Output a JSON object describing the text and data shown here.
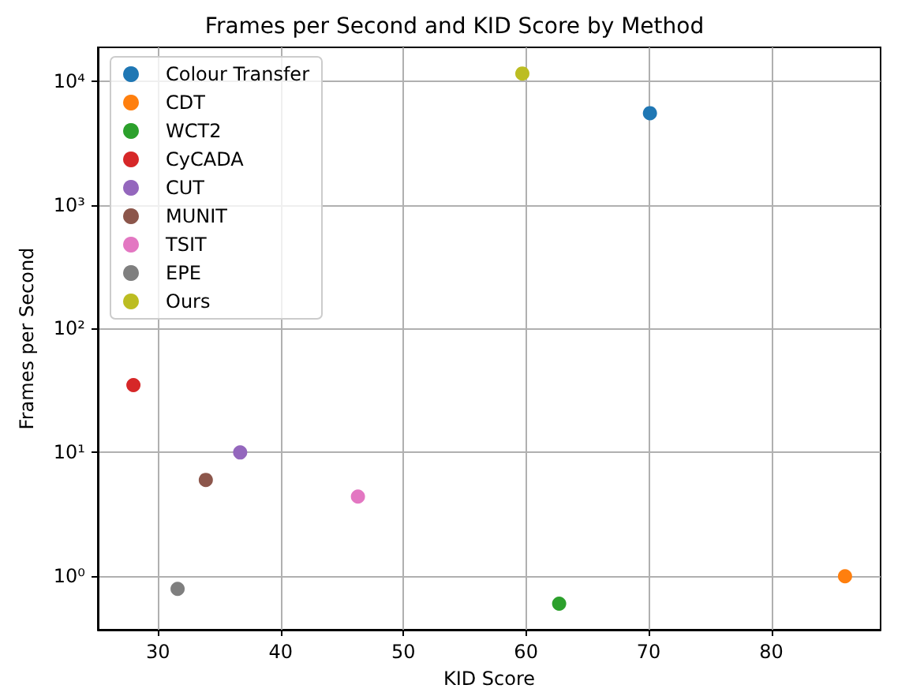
{
  "chart_data": {
    "type": "scatter",
    "title": "Frames per Second and KID Score by Method",
    "xlabel": "KID Score",
    "ylabel": "Frames per Second",
    "series": [
      {
        "name": "Colour Transfer",
        "color": "#1f77b4",
        "x": [
          70.1
        ],
        "values": [
          5500
        ]
      },
      {
        "name": "CDT",
        "color": "#ff7f0e",
        "x": [
          86.0
        ],
        "values": [
          1.0
        ]
      },
      {
        "name": "WCT2",
        "color": "#2ca02c",
        "x": [
          62.7
        ],
        "values": [
          0.6
        ]
      },
      {
        "name": "CyCADA",
        "color": "#d62728",
        "x": [
          28.0
        ],
        "values": [
          35
        ]
      },
      {
        "name": "CUT",
        "color": "#9467bd",
        "x": [
          36.7
        ],
        "values": [
          10
        ]
      },
      {
        "name": "MUNIT",
        "color": "#8c564b",
        "x": [
          33.9
        ],
        "values": [
          6.0
        ]
      },
      {
        "name": "TSIT",
        "color": "#e377c2",
        "x": [
          46.3
        ],
        "values": [
          4.4
        ]
      },
      {
        "name": "EPE",
        "color": "#7f7f7f",
        "x": [
          31.6
        ],
        "values": [
          0.79
        ]
      },
      {
        "name": "Ours",
        "color": "#bcbd22",
        "x": [
          59.7
        ],
        "values": [
          11500
        ]
      }
    ],
    "xlim": [
      25.1,
      88.9
    ],
    "xticks": [
      30,
      40,
      50,
      60,
      70,
      80
    ],
    "ylim": [
      0.37,
      18700
    ],
    "yticks": [
      {
        "value": 1,
        "label": "10⁰"
      },
      {
        "value": 10,
        "label": "10¹"
      },
      {
        "value": 100,
        "label": "10²"
      },
      {
        "value": 1000,
        "label": "10³"
      },
      {
        "value": 10000,
        "label": "10⁴"
      }
    ],
    "log": "y",
    "grid": true,
    "legend": "top left",
    "marker": "circle"
  }
}
